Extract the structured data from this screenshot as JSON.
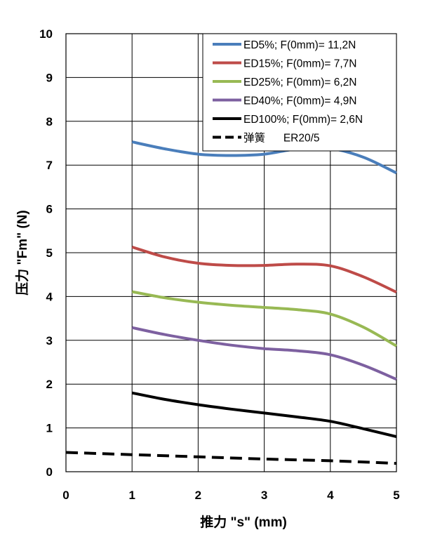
{
  "chart_data": {
    "type": "line",
    "xlabel": "推力 \"s\" (mm)",
    "ylabel": "压力 \"Fm\" (N)",
    "xlim": [
      0,
      5
    ],
    "ylim": [
      0,
      10
    ],
    "x_ticks": [
      "0",
      "1",
      "2",
      "3",
      "4",
      "5"
    ],
    "y_ticks": [
      "0",
      "1",
      "2",
      "3",
      "4",
      "5",
      "6",
      "7",
      "8",
      "9",
      "10"
    ],
    "grid": true,
    "legend_position": "top-right",
    "x": [
      1,
      1.5,
      2,
      2.5,
      3,
      3.5,
      4,
      4.5,
      5
    ],
    "series": [
      {
        "name": "ED5%; F(0mm)= 11,2N",
        "color": "#4a7ebb",
        "style": "solid",
        "values": [
          7.53,
          7.37,
          7.25,
          7.22,
          7.25,
          7.37,
          7.38,
          7.18,
          6.82
        ]
      },
      {
        "name": "ED15%; F(0mm)= 7,7N",
        "color": "#be4b48",
        "style": "solid",
        "values": [
          5.13,
          4.9,
          4.76,
          4.71,
          4.71,
          4.74,
          4.7,
          4.45,
          4.1
        ]
      },
      {
        "name": "ED25%; F(0mm)= 6,2N",
        "color": "#98b954",
        "style": "solid",
        "values": [
          4.11,
          3.97,
          3.87,
          3.8,
          3.75,
          3.7,
          3.6,
          3.3,
          2.87
        ]
      },
      {
        "name": "ED40%; F(0mm)= 4,9N",
        "color": "#7d60a0",
        "style": "solid",
        "values": [
          3.29,
          3.13,
          3.0,
          2.89,
          2.81,
          2.76,
          2.67,
          2.43,
          2.11
        ]
      },
      {
        "name": "ED100%; F(0mm)= 2,6N",
        "color": "#000000",
        "style": "solid",
        "values": [
          1.8,
          1.65,
          1.53,
          1.43,
          1.34,
          1.25,
          1.15,
          0.98,
          0.8
        ]
      },
      {
        "name": "弹簧      ER20/5",
        "color": "#000000",
        "style": "dashed",
        "x": [
          0,
          1,
          2,
          3,
          4,
          5
        ],
        "values": [
          0.44,
          0.39,
          0.34,
          0.29,
          0.25,
          0.19
        ]
      }
    ]
  }
}
